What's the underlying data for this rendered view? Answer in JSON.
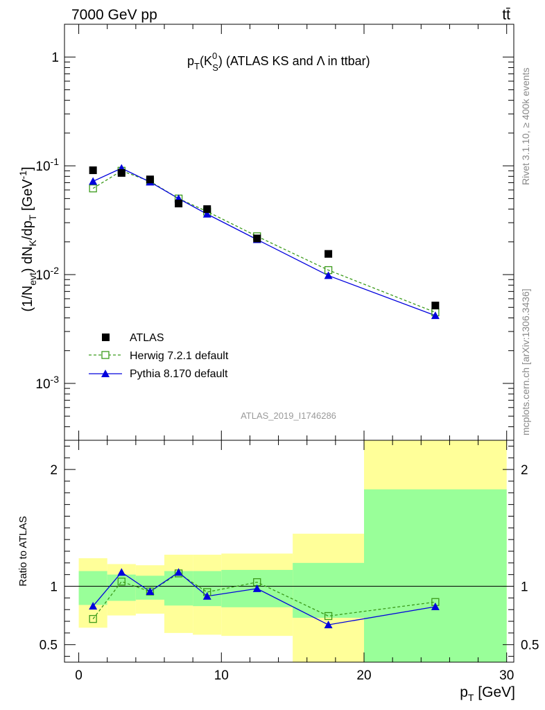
{
  "header": {
    "left": "7000 GeV pp",
    "right": "tt̄"
  },
  "title": "p_T(K_S^0) (ATLAS KS and Λ in ttbar)",
  "side_labels": {
    "rivet": "Rivet 3.1.10, ≥ 400k events",
    "mcplots": "mcplots.cern.ch [arXiv:1306.3436]"
  },
  "watermark": "ATLAS_2019_I1746286",
  "legend": {
    "placement": "bottom-left",
    "entries": [
      {
        "label": "ATLAS",
        "marker": "filled-square",
        "color": "#000000"
      },
      {
        "label": "Herwig 7.2.1 default",
        "marker": "open-square",
        "line": "dashed",
        "color": "#3a9a1a"
      },
      {
        "label": "Pythia 8.170 default",
        "marker": "filled-triangle",
        "line": "solid",
        "color": "#0000dd"
      }
    ]
  },
  "colors": {
    "data": "#000000",
    "herwig": "#3a9a1a",
    "pythia": "#0000dd",
    "band_inner": "#99ff99",
    "band_outer": "#ffff99"
  },
  "chart_data": [
    {
      "type": "scatter",
      "panel": "main",
      "yscale": "log",
      "ylabel": "(1/N_evt) dN_K/dp_T [GeV^-1]",
      "xlim": [
        -1,
        30.5
      ],
      "ylim": [
        0.0003,
        2
      ],
      "y_ticks": [
        "10^-3",
        "10^-2",
        "10^-1",
        "1"
      ],
      "series": [
        {
          "name": "ATLAS",
          "x": [
            1,
            3,
            5,
            7,
            9,
            12.5,
            17.5,
            25
          ],
          "y": [
            0.091,
            0.086,
            0.075,
            0.045,
            0.04,
            0.0215,
            0.0155,
            0.0052
          ]
        },
        {
          "name": "Herwig 7.2.1 default",
          "x": [
            1,
            3,
            5,
            7,
            9,
            12.5,
            17.5,
            25
          ],
          "y": [
            0.062,
            0.09,
            0.072,
            0.05,
            0.038,
            0.0225,
            0.011,
            0.0045
          ]
        },
        {
          "name": "Pythia 8.170 default",
          "x": [
            1,
            3,
            5,
            7,
            9,
            12.5,
            17.5,
            25
          ],
          "y": [
            0.072,
            0.095,
            0.071,
            0.05,
            0.036,
            0.021,
            0.0098,
            0.0042
          ]
        }
      ]
    },
    {
      "type": "scatter",
      "panel": "ratio",
      "xlabel": "p_T [GeV]",
      "ylabel": "Ratio to ATLAS",
      "xlim": [
        -1,
        30.5
      ],
      "ylim": [
        0.35,
        2.25
      ],
      "x_ticks": [
        0,
        10,
        20,
        30
      ],
      "y_ticks": [
        0.5,
        1,
        2
      ],
      "bands": [
        {
          "x0": 0,
          "x1": 2,
          "inner": [
            0.84,
            1.13
          ],
          "outer": [
            0.645,
            1.24
          ]
        },
        {
          "x0": 2,
          "x1": 4,
          "inner": [
            0.875,
            1.1
          ],
          "outer": [
            0.75,
            1.19
          ]
        },
        {
          "x0": 4,
          "x1": 6,
          "inner": [
            0.885,
            1.09
          ],
          "outer": [
            0.765,
            1.18
          ]
        },
        {
          "x0": 6,
          "x1": 8,
          "inner": [
            0.835,
            1.13
          ],
          "outer": [
            0.6,
            1.27
          ]
        },
        {
          "x0": 8,
          "x1": 10,
          "inner": [
            0.83,
            1.13
          ],
          "outer": [
            0.585,
            1.27
          ]
        },
        {
          "x0": 10,
          "x1": 15,
          "inner": [
            0.82,
            1.14
          ],
          "outer": [
            0.575,
            1.28
          ]
        },
        {
          "x0": 15,
          "x1": 20,
          "inner": [
            0.73,
            1.2
          ],
          "outer": [
            0.35,
            1.45
          ]
        },
        {
          "x0": 20,
          "x1": 30,
          "inner": [
            0.35,
            1.83
          ],
          "outer": [
            0.35,
            2.25
          ]
        }
      ],
      "series": [
        {
          "name": "Herwig 7.2.1 default",
          "x": [
            1,
            3,
            5,
            7,
            9,
            12.5,
            17.5,
            25
          ],
          "y": [
            0.72,
            1.04,
            0.955,
            1.11,
            0.95,
            1.035,
            0.745,
            0.865
          ]
        },
        {
          "name": "Pythia 8.170 default",
          "x": [
            1,
            3,
            5,
            7,
            9,
            12.5,
            17.5,
            25
          ],
          "y": [
            0.83,
            1.12,
            0.955,
            1.12,
            0.915,
            0.98,
            0.67,
            0.825
          ]
        }
      ]
    }
  ]
}
